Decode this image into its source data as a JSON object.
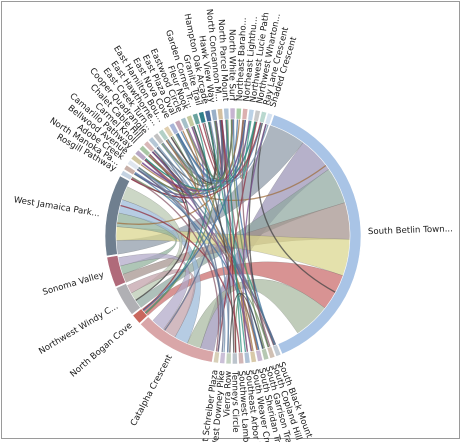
{
  "chart_data": {
    "type": "chord",
    "title": "",
    "groups": [
      {
        "label": "West Jamaica Park...",
        "value": 8.0,
        "color": "#6f7f8f"
      },
      {
        "label": "Rosgill Pathway",
        "value": 0.5,
        "color": "#c5d3e2"
      },
      {
        "label": "North Manoka Pa...",
        "value": 0.5,
        "color": "#c8b0a8"
      },
      {
        "label": "Adobe Creek",
        "value": 0.5,
        "color": "#dfe6ee"
      },
      {
        "label": "Bellwood Avenue",
        "value": 0.5,
        "color": "#cfc6a0"
      },
      {
        "label": "Camarillo Pathway",
        "value": 0.5,
        "color": "#b7a7c4"
      },
      {
        "label": "Carmel Knoll",
        "value": 0.5,
        "color": "#a8c6a4"
      },
      {
        "label": "Chalet Cable Hill",
        "value": 0.5,
        "color": "#d9b8b8"
      },
      {
        "label": "Cooper Quadrangle",
        "value": 0.5,
        "color": "#b5c7d6"
      },
      {
        "label": "East Creek Turn...",
        "value": 0.5,
        "color": "#c2c2c2"
      },
      {
        "label": "East Hawthorne...",
        "value": 0.5,
        "color": "#b3d0c7"
      },
      {
        "label": "East Hamilton Bou...",
        "value": 0.5,
        "color": "#e0cfb0"
      },
      {
        "label": "East Nova Cove",
        "value": 0.5,
        "color": "#a9b6d8"
      },
      {
        "label": "East Plaza Oval",
        "value": 0.5,
        "color": "#c7a6b6"
      },
      {
        "label": "Eastwood Circle",
        "value": 0.5,
        "color": "#a6c0c9"
      },
      {
        "label": "Fleur Nook",
        "value": 0.5,
        "color": "#c4c9a0"
      },
      {
        "label": "Garden Corner Tr...",
        "value": 0.5,
        "color": "#6aa39e"
      },
      {
        "label": "Granite Trail",
        "value": 0.5,
        "color": "#2f7f8c"
      },
      {
        "label": "Hampton Oak Arcade",
        "value": 0.5,
        "color": "#4a6a9a"
      },
      {
        "label": "Hawk View Way",
        "value": 0.5,
        "color": "#9ab0c8"
      },
      {
        "label": "North Concannon M...",
        "value": 0.5,
        "color": "#d4c0a0"
      },
      {
        "label": "North Parcel Mount",
        "value": 0.5,
        "color": "#b0c4d8"
      },
      {
        "label": "North White Surf",
        "value": 0.5,
        "color": "#c6b4d0"
      },
      {
        "label": "Northeast Baraho...",
        "value": 0.5,
        "color": "#a8cfa6"
      },
      {
        "label": "Northeast Lighthu...",
        "value": 0.5,
        "color": "#dbb0b0"
      },
      {
        "label": "Northwest Lucie Path",
        "value": 0.5,
        "color": "#bcd2e6"
      },
      {
        "label": "Northwest Wharton...",
        "value": 0.5,
        "color": "#c9c9c9"
      },
      {
        "label": "Ray Lane Crescent",
        "value": 0.5,
        "color": "#b9d8cf"
      },
      {
        "label": "Shaded Crescent",
        "value": 0.5,
        "color": "#d6e2f0"
      },
      {
        "label": "South Betlin Town...",
        "value": 30.0,
        "color": "#a9c4e6"
      },
      {
        "label": "South Black Mount",
        "value": 0.5,
        "color": "#c2cbd4"
      },
      {
        "label": "South Copland Hill",
        "value": 0.5,
        "color": "#d1c0b3"
      },
      {
        "label": "South Garrison Trail",
        "value": 0.5,
        "color": "#b6c8b2"
      },
      {
        "label": "South Sheridan Trail",
        "value": 0.5,
        "color": "#c9b8d2"
      },
      {
        "label": "South Weaver Crest",
        "value": 0.5,
        "color": "#d8c9a8"
      },
      {
        "label": "Southeast Arbor Trail",
        "value": 0.5,
        "color": "#b0c2d6"
      },
      {
        "label": "Southwest Lamb...",
        "value": 0.5,
        "color": "#d2b6b6"
      },
      {
        "label": "Tenneys Circle",
        "value": 0.5,
        "color": "#bcc4cc"
      },
      {
        "label": "Vierra Row",
        "value": 0.5,
        "color": "#c4d3c0"
      },
      {
        "label": "West Downey Pike",
        "value": 0.5,
        "color": "#cbc0d8"
      },
      {
        "label": "West Schreiber Plaza",
        "value": 0.5,
        "color": "#d8d0b8"
      },
      {
        "label": "Catalpha Crescent",
        "value": 8.0,
        "color": "#d9a6a8"
      },
      {
        "label": "North Bogan Cove",
        "value": 1.0,
        "color": "#c9685e"
      },
      {
        "label": "Northwest Windy C...",
        "value": 3.0,
        "color": "#b0b0b4"
      },
      {
        "label": "Sonoma Valley",
        "value": 3.0,
        "color": "#b06a7a"
      }
    ],
    "chords": [
      {
        "source": 29,
        "target": 0,
        "color": "#8e9aa8"
      },
      {
        "source": 29,
        "target": 41,
        "color": "#9a93b6"
      },
      {
        "source": 29,
        "target": 43,
        "color": "#8fa8a0"
      },
      {
        "source": 29,
        "target": 44,
        "color": "#a4928c"
      },
      {
        "source": 29,
        "target": 0,
        "color": "#d9d68c"
      },
      {
        "source": 29,
        "target": 42,
        "color": "#c96a6a"
      },
      {
        "source": 29,
        "target": 41,
        "color": "#a8b8a0"
      },
      {
        "source": 0,
        "target": 44,
        "color": "#8fb09a"
      },
      {
        "source": 0,
        "target": 41,
        "color": "#9ab8d8"
      },
      {
        "source": 0,
        "target": 43,
        "color": "#b8c8b0"
      },
      {
        "source": 41,
        "target": 43,
        "color": "#c0a0a8"
      },
      {
        "source": 41,
        "target": 44,
        "color": "#b0a8c8"
      }
    ]
  }
}
